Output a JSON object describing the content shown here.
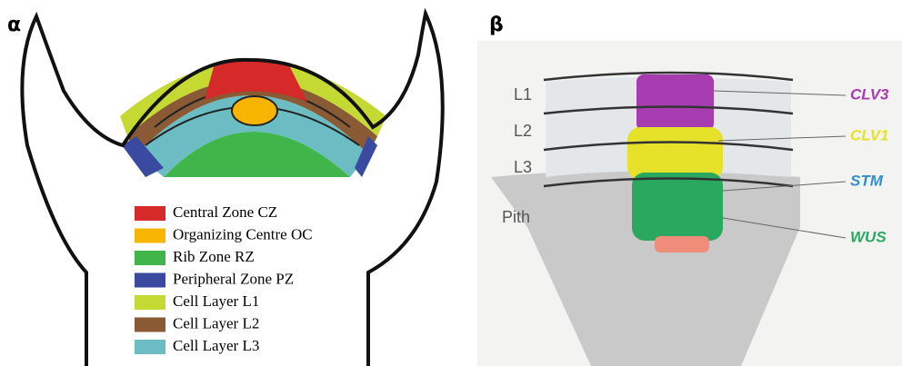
{
  "panels": {
    "alpha": {
      "label": "α",
      "legend": [
        {
          "label": "Central Zone CZ",
          "color": "#d62a2a"
        },
        {
          "label": "Organizing Centre OC",
          "color": "#f7b500"
        },
        {
          "label": "Rib Zone RZ",
          "color": "#3fb54a"
        },
        {
          "label": "Peripheral Zone PZ",
          "color": "#3a4aa0"
        },
        {
          "label": "Cell Layer L1",
          "color": "#c4d931"
        },
        {
          "label": "Cell Layer L2",
          "color": "#8a5a34"
        },
        {
          "label": "Cell Layer L3",
          "color": "#6cbcc4"
        }
      ]
    },
    "beta": {
      "label": "β",
      "layers": [
        "L1",
        "L2",
        "L3",
        "Pith"
      ],
      "genes": [
        {
          "label": "CLV3",
          "color": "#a63cb0"
        },
        {
          "label": "CLV1",
          "color": "#e6e22a"
        },
        {
          "label": "STM",
          "color": "#2f8fd0"
        },
        {
          "label": "WUS",
          "color": "#2aa860"
        }
      ]
    }
  }
}
